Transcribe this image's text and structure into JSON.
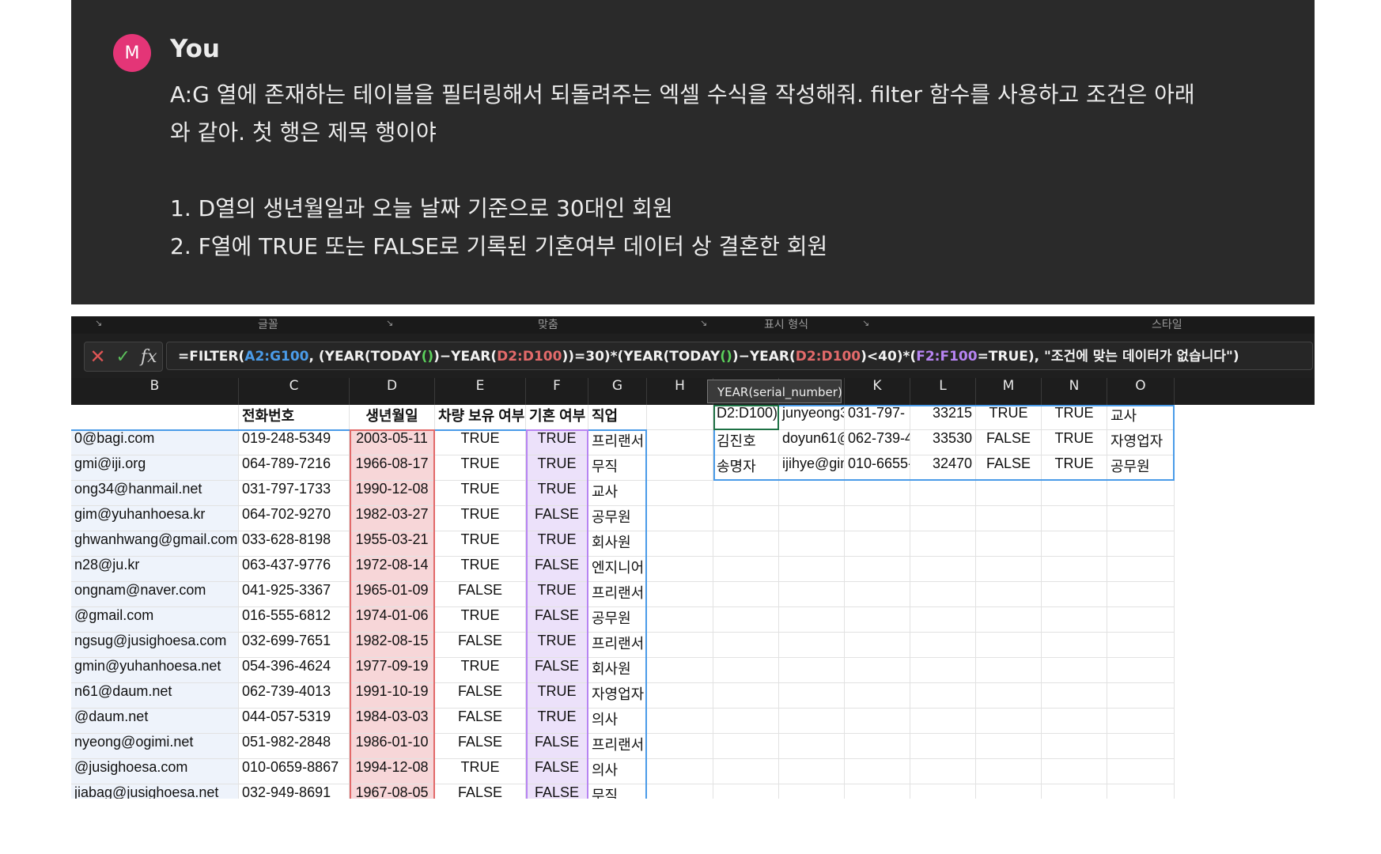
{
  "chat": {
    "avatar_letter": "M",
    "author": "You",
    "lines": [
      "A:G 열에 존재하는 테이블을 필터링해서 되돌려주는 엑셀 수식을 작성해줘. filter 함수를 사용하고 조건은 아래",
      "와 같아. 첫 행은 제목 행이야",
      "1. D열의 생년월일과 오늘 날짜 기준으로 30대인 회원",
      "2. F열에 TRUE 또는 FALSE로 기록된 기혼여부 데이터 상 결혼한 회원"
    ]
  },
  "ribbon": {
    "groups": [
      "글꼴",
      "맞춤",
      "표시 형식",
      "스타일"
    ]
  },
  "formula_bar": {
    "cancel_icon": "✕",
    "enter_icon": "✓",
    "fx_label": "fx",
    "formula_parts": [
      [
        "=FILTER(",
        ""
      ],
      [
        "A2:G100",
        "r-a"
      ],
      [
        ", (YEAR(TODAY",
        ""
      ],
      [
        "()",
        "r-p"
      ],
      [
        ")−YEAR(",
        ""
      ],
      [
        "D2:D100",
        "r-d"
      ],
      [
        "))=30)*(YEAR(TODAY",
        ""
      ],
      [
        "()",
        "r-p"
      ],
      [
        ")−YEAR(",
        ""
      ],
      [
        "D2:D100",
        "r-d"
      ],
      [
        ")<40)*(",
        ""
      ],
      [
        "F2:F100",
        "r-f"
      ],
      [
        "=TRUE), \"조건에 맞는 데이터가 없습니다\")",
        ""
      ]
    ]
  },
  "tooltip": "YEAR(serial_number)",
  "columns": [
    "B",
    "C",
    "D",
    "E",
    "F",
    "G",
    "H",
    "I",
    "J",
    "K",
    "L",
    "M",
    "N",
    "O"
  ],
  "header_row": [
    "",
    "전화번호",
    "생년월일",
    "차량 보유 여부",
    "기혼 여부",
    "직업"
  ],
  "rows": [
    [
      "0@bagi.com",
      "019-248-5349",
      "2003-05-11",
      "TRUE",
      "TRUE",
      "프리랜서"
    ],
    [
      "gmi@iji.org",
      "064-789-7216",
      "1966-08-17",
      "TRUE",
      "TRUE",
      "무직"
    ],
    [
      "ong34@hanmail.net",
      "031-797-1733",
      "1990-12-08",
      "TRUE",
      "TRUE",
      "교사"
    ],
    [
      "gim@yuhanhoesa.kr",
      "064-702-9270",
      "1982-03-27",
      "TRUE",
      "FALSE",
      "공무원"
    ],
    [
      "ghwanhwang@gmail.com",
      "033-628-8198",
      "1955-03-21",
      "TRUE",
      "TRUE",
      "회사원"
    ],
    [
      "n28@ju.kr",
      "063-437-9776",
      "1972-08-14",
      "TRUE",
      "FALSE",
      "엔지니어"
    ],
    [
      "ongnam@naver.com",
      "041-925-3367",
      "1965-01-09",
      "FALSE",
      "TRUE",
      "프리랜서"
    ],
    [
      "@gmail.com",
      "016-555-6812",
      "1974-01-06",
      "TRUE",
      "FALSE",
      "공무원"
    ],
    [
      "ngsug@jusighoesa.com",
      "032-699-7651",
      "1982-08-15",
      "FALSE",
      "TRUE",
      "프리랜서"
    ],
    [
      "gmin@yuhanhoesa.net",
      "054-396-4624",
      "1977-09-19",
      "TRUE",
      "FALSE",
      "회사원"
    ],
    [
      "n61@daum.net",
      "062-739-4013",
      "1991-10-19",
      "FALSE",
      "TRUE",
      "자영업자"
    ],
    [
      "@daum.net",
      "044-057-5319",
      "1984-03-03",
      "FALSE",
      "TRUE",
      "의사"
    ],
    [
      "nyeong@ogimi.net",
      "051-982-2848",
      "1986-01-10",
      "FALSE",
      "FALSE",
      "프리랜서"
    ],
    [
      "@jusighoesa.com",
      "010-0659-8867",
      "1994-12-08",
      "TRUE",
      "FALSE",
      "의사"
    ],
    [
      "jiabag@jusighoesa.net",
      "032-949-8691",
      "1967-08-05",
      "FALSE",
      "FALSE",
      "무직"
    ]
  ],
  "result_rows": [
    [
      "D2:D100)",
      "junyeong3",
      "031-797-",
      "33215",
      "TRUE",
      "TRUE",
      "교사"
    ],
    [
      "김진호",
      "doyun61@",
      "062-739-4",
      "33530",
      "FALSE",
      "TRUE",
      "자영업자"
    ],
    [
      "송명자",
      "ijihye@gim",
      "010-6655-",
      "32470",
      "FALSE",
      "TRUE",
      "공무원"
    ]
  ],
  "colors": {
    "chat_bg": "#2a2a2a",
    "avatar": "#e43577",
    "range_a": "#4a9be8",
    "range_d": "#e26a6a",
    "range_f": "#b784f2"
  }
}
